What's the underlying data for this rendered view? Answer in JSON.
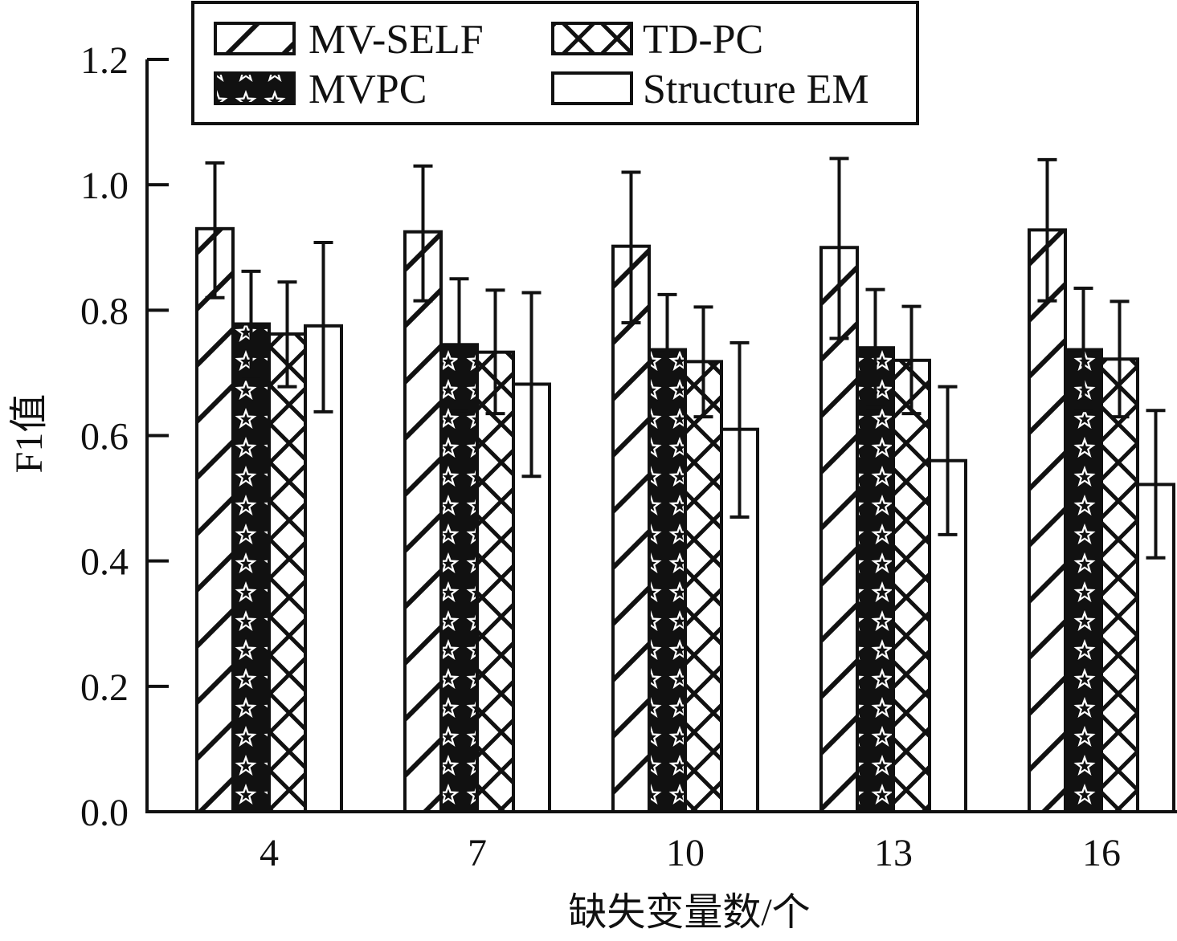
{
  "chart_data": {
    "type": "bar",
    "title": "",
    "xlabel": "缺失变量数/个",
    "ylabel": "F1值",
    "categories": [
      "4",
      "7",
      "10",
      "13",
      "16"
    ],
    "ylim": [
      0,
      1.2
    ],
    "yticks": [
      "0.0",
      "0.2",
      "0.4",
      "0.6",
      "0.8",
      "1.0",
      "1.2"
    ],
    "grid": false,
    "legend_position": "top",
    "series": [
      {
        "name": "MV-SELF",
        "pattern": "diagonal-hatch",
        "values": [
          0.93,
          0.925,
          0.902,
          0.9,
          0.928
        ],
        "error": [
          [
            0.82,
            1.035
          ],
          [
            0.815,
            1.03
          ],
          [
            0.78,
            1.02
          ],
          [
            0.755,
            1.042
          ],
          [
            0.815,
            1.04
          ]
        ]
      },
      {
        "name": "MVPC",
        "pattern": "stars",
        "values": [
          0.778,
          0.745,
          0.737,
          0.74,
          0.737
        ],
        "error": [
          [
            0.69,
            0.862
          ],
          [
            0.64,
            0.85
          ],
          [
            0.65,
            0.825
          ],
          [
            0.645,
            0.833
          ],
          [
            0.64,
            0.835
          ]
        ]
      },
      {
        "name": "TD-PC",
        "pattern": "cross-hatch",
        "values": [
          0.762,
          0.733,
          0.718,
          0.72,
          0.722
        ],
        "error": [
          [
            0.678,
            0.845
          ],
          [
            0.635,
            0.832
          ],
          [
            0.63,
            0.805
          ],
          [
            0.635,
            0.806
          ],
          [
            0.63,
            0.814
          ]
        ]
      },
      {
        "name": "Structure EM",
        "pattern": "none",
        "values": [
          0.775,
          0.682,
          0.61,
          0.56,
          0.522
        ],
        "error": [
          [
            0.638,
            0.908
          ],
          [
            0.535,
            0.828
          ],
          [
            0.47,
            0.748
          ],
          [
            0.442,
            0.678
          ],
          [
            0.405,
            0.64
          ]
        ]
      }
    ],
    "colors": {
      "stroke": "#111111",
      "fill": "#ffffff"
    }
  }
}
